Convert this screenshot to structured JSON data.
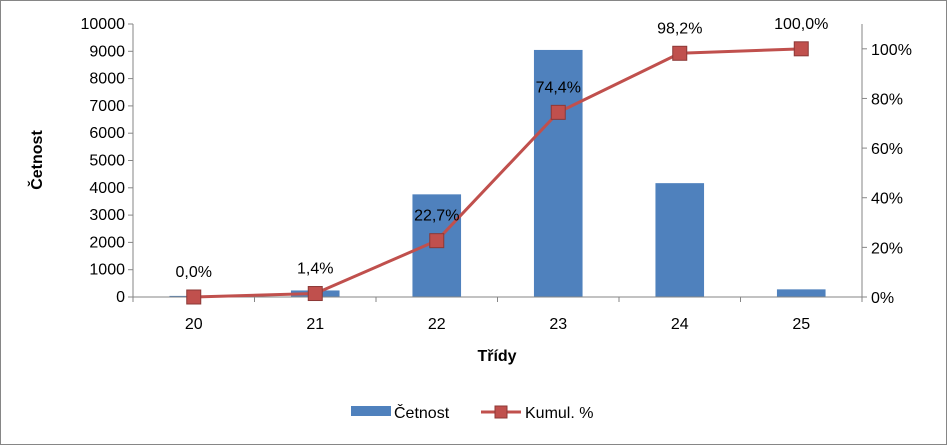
{
  "chart_data": {
    "type": "bar",
    "categories": [
      "20",
      "21",
      "22",
      "23",
      "24",
      "25"
    ],
    "series": [
      {
        "name": "Četnost",
        "type": "bar",
        "axis": "left",
        "values": [
          40,
          240,
          3760,
          9050,
          4170,
          280
        ],
        "color": "#4f81bd"
      },
      {
        "name": "Kumul. %",
        "type": "line",
        "axis": "right",
        "values": [
          0.0,
          1.4,
          22.7,
          74.4,
          98.2,
          100.0
        ],
        "data_labels": [
          "0,0%",
          "1,4%",
          "22,7%",
          "74,4%",
          "98,2%",
          "100,0%"
        ],
        "color": "#c0504d",
        "marker": "square"
      }
    ],
    "title": "",
    "xlabel": "Třídy",
    "ylabel": "Četnost",
    "ylim": [
      0,
      10000
    ],
    "yticks": [
      "0",
      "1000",
      "2000",
      "3000",
      "4000",
      "5000",
      "6000",
      "7000",
      "8000",
      "9000",
      "10000"
    ],
    "y2lim": [
      0,
      110
    ],
    "y2ticks": [
      "0%",
      "20%",
      "40%",
      "60%",
      "80%",
      "100%"
    ],
    "grid": false,
    "legend_position": "bottom"
  }
}
